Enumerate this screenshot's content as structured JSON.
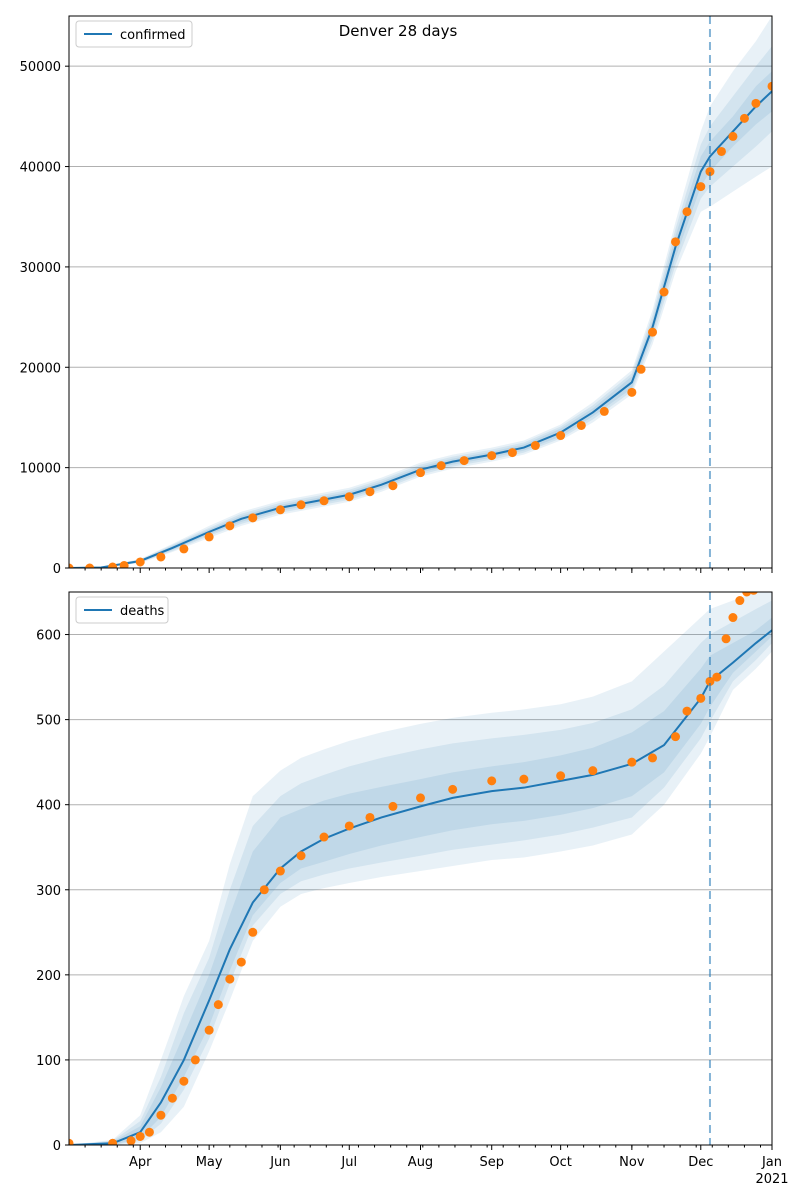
{
  "figure_title": "Denver 28 days",
  "colors": {
    "model_line": "#1f77b4",
    "band": "#1f77b4",
    "observed": "#ff7f0e",
    "grid": "#b0b0b0",
    "forecast_line": "#1f77b4"
  },
  "chart_data": [
    {
      "type": "line",
      "title": "Denver 28 days",
      "legend": [
        "confirmed"
      ],
      "legend_position": "upper-left",
      "grid": "horizontal",
      "x_axis": {
        "type": "date",
        "range": [
          "2020-03-01",
          "2021-01-01"
        ],
        "tick_labels": []
      },
      "y_axis": {
        "range": [
          0,
          55000
        ],
        "ticks": [
          0,
          10000,
          20000,
          30000,
          40000,
          50000
        ]
      },
      "forecast_start": "2020-12-05",
      "series": [
        {
          "name": "confirmed",
          "kind": "model",
          "x": [
            "2020-03-01",
            "2020-03-15",
            "2020-04-01",
            "2020-04-15",
            "2020-05-01",
            "2020-05-15",
            "2020-06-01",
            "2020-06-15",
            "2020-07-01",
            "2020-07-15",
            "2020-08-01",
            "2020-08-15",
            "2020-09-01",
            "2020-09-15",
            "2020-10-01",
            "2020-10-15",
            "2020-11-01",
            "2020-11-10",
            "2020-11-20",
            "2020-12-01",
            "2020-12-05",
            "2020-12-15",
            "2020-12-25",
            "2021-01-01"
          ],
          "y": [
            0,
            50,
            700,
            2000,
            3600,
            4900,
            6000,
            6600,
            7300,
            8300,
            9800,
            10600,
            11300,
            12000,
            13500,
            15500,
            18500,
            24000,
            32000,
            39500,
            41000,
            43500,
            46000,
            47500
          ],
          "bands": [
            {
              "lower": [
                0,
                0,
                500,
                1600,
                3000,
                4200,
                5300,
                5900,
                6600,
                7600,
                9100,
                9900,
                10600,
                11300,
                12700,
                14500,
                17300,
                22300,
                29500,
                35500,
                36000,
                37500,
                39000,
                40000
              ],
              "upper": [
                0,
                100,
                900,
                2400,
                4200,
                5600,
                6700,
                7300,
                8000,
                9000,
                10500,
                11300,
                12000,
                12700,
                14300,
                16500,
                19700,
                25700,
                34500,
                43500,
                46000,
                49500,
                52500,
                55000
              ]
            },
            {
              "lower": [
                0,
                0,
                550,
                1700,
                3200,
                4400,
                5500,
                6100,
                6800,
                7800,
                9300,
                10100,
                10800,
                11500,
                12900,
                14800,
                17600,
                22800,
                30200,
                36800,
                38000,
                40000,
                42000,
                43500
              ],
              "upper": [
                0,
                80,
                850,
                2300,
                4000,
                5400,
                6500,
                7100,
                7800,
                8800,
                10300,
                11100,
                11800,
                12500,
                14100,
                16200,
                19400,
                25200,
                33800,
                42200,
                44000,
                47000,
                50000,
                52000
              ]
            },
            {
              "lower": [
                0,
                0,
                600,
                1800,
                3350,
                4600,
                5700,
                6300,
                7000,
                8000,
                9500,
                10300,
                11000,
                11700,
                13100,
                15100,
                17900,
                23300,
                30900,
                38000,
                39500,
                42000,
                44200,
                45500
              ],
              "upper": [
                0,
                65,
                800,
                2200,
                3850,
                5200,
                6300,
                6900,
                7600,
                8600,
                10100,
                10900,
                11600,
                12300,
                13900,
                15900,
                19100,
                24700,
                33100,
                41000,
                42500,
                45000,
                48000,
                49500
              ]
            }
          ]
        },
        {
          "name": "",
          "kind": "observed",
          "x": [
            "2020-03-01",
            "2020-03-10",
            "2020-03-20",
            "2020-03-25",
            "2020-04-01",
            "2020-04-10",
            "2020-04-20",
            "2020-05-01",
            "2020-05-10",
            "2020-05-20",
            "2020-06-01",
            "2020-06-10",
            "2020-06-20",
            "2020-07-01",
            "2020-07-10",
            "2020-07-20",
            "2020-08-01",
            "2020-08-10",
            "2020-08-20",
            "2020-09-01",
            "2020-09-10",
            "2020-09-20",
            "2020-10-01",
            "2020-10-10",
            "2020-10-20",
            "2020-11-01",
            "2020-11-05",
            "2020-11-10",
            "2020-11-15",
            "2020-11-20",
            "2020-11-25",
            "2020-12-01",
            "2020-12-05",
            "2020-12-10",
            "2020-12-15",
            "2020-12-20",
            "2020-12-25",
            "2021-01-01"
          ],
          "y": [
            0,
            0,
            100,
            250,
            600,
            1100,
            1900,
            3100,
            4200,
            5000,
            5800,
            6300,
            6700,
            7100,
            7600,
            8200,
            9500,
            10200,
            10700,
            11200,
            11500,
            12200,
            13200,
            14200,
            15600,
            17500,
            19800,
            23500,
            27500,
            32500,
            35500,
            38000,
            39500,
            41500,
            43000,
            44800,
            46300,
            48000
          ]
        }
      ]
    },
    {
      "type": "line",
      "legend": [
        "deaths"
      ],
      "legend_position": "upper-left",
      "grid": "horizontal",
      "x_axis": {
        "type": "date",
        "range": [
          "2020-03-01",
          "2021-01-01"
        ],
        "tick_labels": [
          "Apr",
          "May",
          "Jun",
          "Jul",
          "Aug",
          "Sep",
          "Oct",
          "Nov",
          "Dec",
          "Jan"
        ],
        "tick_dates": [
          "2020-04-01",
          "2020-05-01",
          "2020-06-01",
          "2020-07-01",
          "2020-08-01",
          "2020-09-01",
          "2020-10-01",
          "2020-11-01",
          "2020-12-01",
          "2021-01-01"
        ],
        "year_label": "2021"
      },
      "y_axis": {
        "range": [
          0,
          650
        ],
        "ticks": [
          0,
          100,
          200,
          300,
          400,
          500,
          600
        ]
      },
      "forecast_start": "2020-12-05",
      "series": [
        {
          "name": "deaths",
          "kind": "model",
          "x": [
            "2020-03-01",
            "2020-03-20",
            "2020-04-01",
            "2020-04-10",
            "2020-04-20",
            "2020-05-01",
            "2020-05-10",
            "2020-05-20",
            "2020-06-01",
            "2020-06-10",
            "2020-06-20",
            "2020-07-01",
            "2020-07-15",
            "2020-08-01",
            "2020-08-15",
            "2020-09-01",
            "2020-09-15",
            "2020-10-01",
            "2020-10-15",
            "2020-11-01",
            "2020-11-15",
            "2020-12-01",
            "2020-12-05",
            "2020-12-15",
            "2020-12-25",
            "2021-01-01"
          ],
          "y": [
            0,
            2,
            15,
            50,
            100,
            170,
            230,
            285,
            325,
            345,
            360,
            372,
            385,
            398,
            408,
            416,
            420,
            428,
            435,
            448,
            470,
            525,
            545,
            567,
            590,
            605
          ],
          "bands": [
            {
              "lower": [
                0,
                0,
                2,
                15,
                45,
                110,
                170,
                240,
                280,
                295,
                302,
                308,
                315,
                322,
                328,
                335,
                338,
                345,
                352,
                365,
                400,
                460,
                480,
                535,
                560,
                580
              ],
              "upper": [
                0,
                6,
                35,
                100,
                175,
                240,
                330,
                410,
                440,
                455,
                465,
                475,
                485,
                495,
                502,
                508,
                512,
                518,
                527,
                545,
                580,
                620,
                630,
                640,
                650,
                655
              ]
            },
            {
              "lower": [
                0,
                0,
                5,
                25,
                65,
                125,
                190,
                258,
                295,
                310,
                318,
                325,
                332,
                340,
                347,
                353,
                358,
                365,
                373,
                385,
                420,
                478,
                498,
                545,
                570,
                590
              ],
              "upper": [
                0,
                5,
                28,
                80,
                155,
                220,
                300,
                375,
                410,
                425,
                435,
                445,
                455,
                465,
                472,
                478,
                482,
                488,
                496,
                512,
                540,
                590,
                600,
                615,
                630,
                640
              ]
            },
            {
              "lower": [
                0,
                0,
                8,
                33,
                80,
                140,
                205,
                270,
                308,
                325,
                333,
                342,
                352,
                362,
                370,
                377,
                381,
                388,
                396,
                410,
                438,
                495,
                515,
                555,
                580,
                598
              ],
              "upper": [
                0,
                4,
                22,
                68,
                130,
                200,
                270,
                345,
                385,
                395,
                405,
                413,
                421,
                430,
                438,
                445,
                450,
                458,
                467,
                485,
                510,
                560,
                575,
                590,
                605,
                620
              ]
            }
          ]
        },
        {
          "name": "",
          "kind": "observed",
          "x": [
            "2020-03-01",
            "2020-03-20",
            "2020-03-28",
            "2020-04-01",
            "2020-04-05",
            "2020-04-10",
            "2020-04-15",
            "2020-04-20",
            "2020-04-25",
            "2020-05-01",
            "2020-05-05",
            "2020-05-10",
            "2020-05-15",
            "2020-05-20",
            "2020-05-25",
            "2020-06-01",
            "2020-06-10",
            "2020-06-20",
            "2020-07-01",
            "2020-07-10",
            "2020-07-20",
            "2020-08-01",
            "2020-08-15",
            "2020-09-01",
            "2020-09-15",
            "2020-10-01",
            "2020-10-15",
            "2020-11-01",
            "2020-11-10",
            "2020-11-20",
            "2020-11-25",
            "2020-12-01",
            "2020-12-05",
            "2020-12-08",
            "2020-12-12",
            "2020-12-15",
            "2020-12-18",
            "2020-12-21",
            "2020-12-24"
          ],
          "y": [
            2,
            2,
            5,
            10,
            15,
            35,
            55,
            75,
            100,
            135,
            165,
            195,
            215,
            250,
            300,
            322,
            340,
            362,
            375,
            385,
            398,
            408,
            418,
            428,
            430,
            434,
            440,
            450,
            455,
            480,
            510,
            525,
            545,
            550,
            595,
            620,
            640,
            650,
            652
          ]
        }
      ]
    }
  ]
}
